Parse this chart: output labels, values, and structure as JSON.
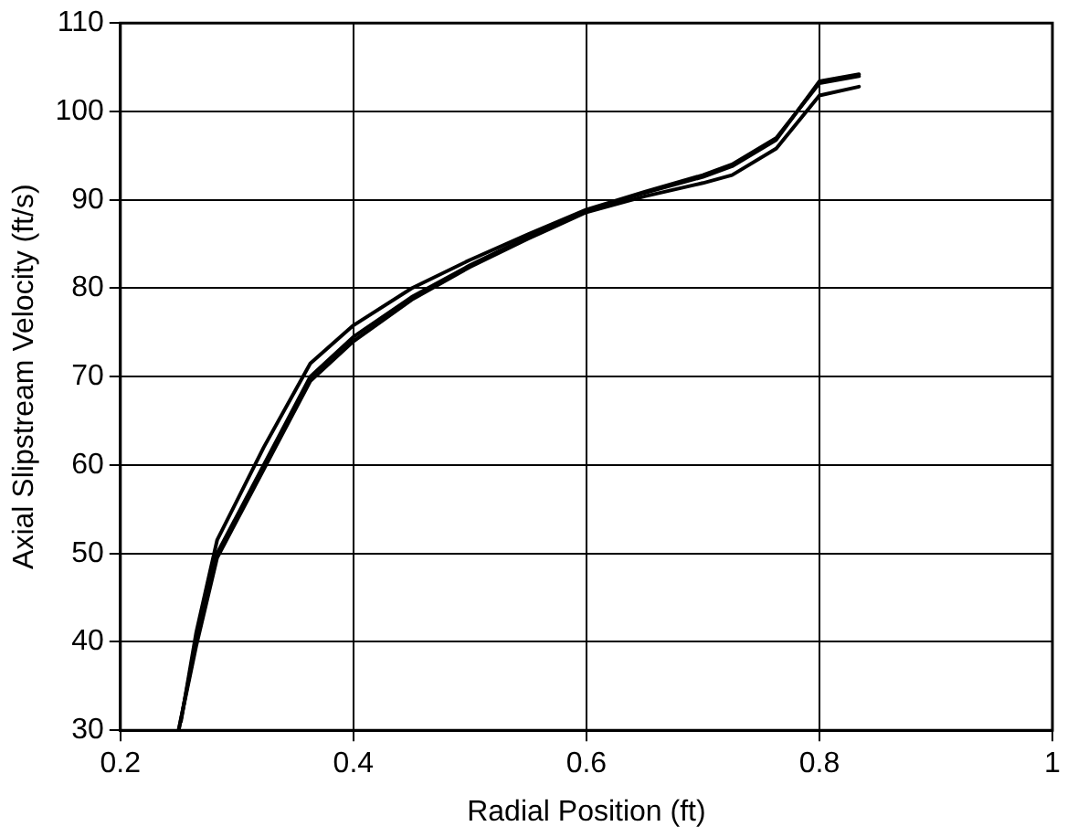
{
  "chart_data": {
    "type": "line",
    "xlabel": "Radial Position (ft)",
    "ylabel": "Axial Slipstream Velocity (ft/s)",
    "xlim": [
      0.2,
      1
    ],
    "xticks": [
      0.2,
      0.4,
      0.6,
      0.8,
      1
    ],
    "ylim": [
      30,
      110
    ],
    "yticks": [
      30,
      40,
      50,
      60,
      70,
      80,
      90,
      100,
      110
    ],
    "grid": true,
    "marker": "none",
    "line_style": "solid",
    "series": [
      {
        "color": "#000000",
        "x": [
          0.25,
          0.265,
          0.283,
          0.323,
          0.363,
          0.4,
          0.45,
          0.5,
          0.55,
          0.6,
          0.65,
          0.7,
          0.725,
          0.763,
          0.8,
          0.834
        ],
        "values": [
          30,
          40,
          50,
          60,
          70,
          74.5,
          79,
          82.6,
          85.8,
          88.8,
          90.8,
          92.6,
          93.8,
          96.8,
          103.4,
          104.2
        ]
      },
      {
        "color": "#000000",
        "x": [
          0.252,
          0.265,
          0.283,
          0.323,
          0.363,
          0.4,
          0.45,
          0.5,
          0.55,
          0.6,
          0.65,
          0.7,
          0.725,
          0.763,
          0.8,
          0.834
        ],
        "values": [
          31,
          41,
          51.5,
          62,
          71.5,
          75.8,
          80,
          83.2,
          86.1,
          88.9,
          90.9,
          92.8,
          94,
          97,
          103.2,
          104
        ]
      },
      {
        "color": "#000000",
        "x": [
          0.25,
          0.265,
          0.283,
          0.323,
          0.363,
          0.4,
          0.45,
          0.5,
          0.55,
          0.6,
          0.65,
          0.7,
          0.725,
          0.763,
          0.8,
          0.834
        ],
        "values": [
          30,
          39.5,
          49.5,
          59.5,
          69.5,
          74,
          78.7,
          82.4,
          85.6,
          88.6,
          90.4,
          91.9,
          92.8,
          95.8,
          101.8,
          102.8
        ]
      }
    ]
  }
}
